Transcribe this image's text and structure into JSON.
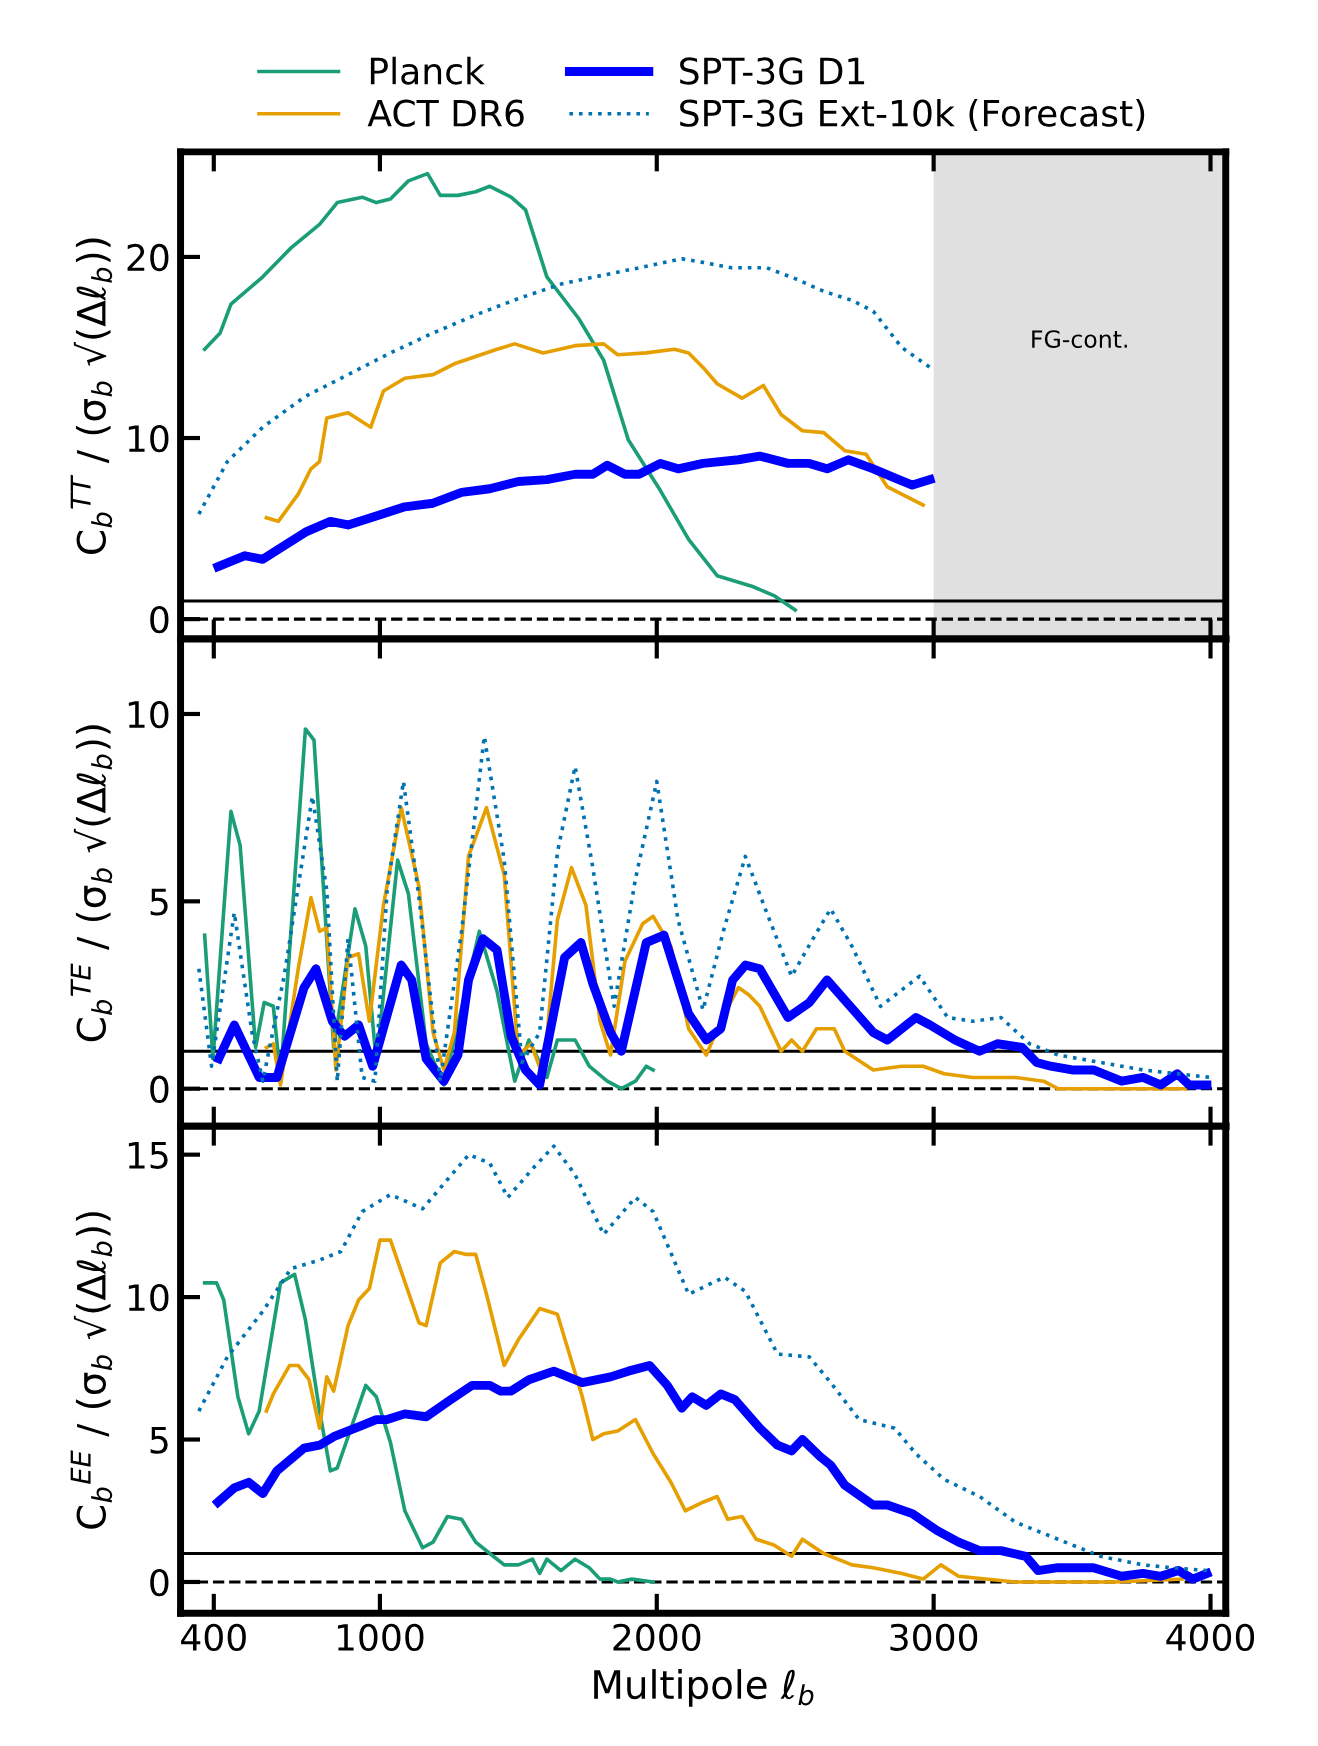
{
  "chart_data": [
    {
      "type": "line",
      "ylabel": "C$_{b}$$^{TT}$ / (σ$_{b}$ √(Δℓ$_{b}$))",
      "xlim": [
        280,
        4055
      ],
      "xticks": [
        400,
        1000,
        2000,
        3000,
        4000
      ],
      "ylim": [
        -1.1,
        25.8
      ],
      "yticks": [
        0,
        10,
        20
      ],
      "tick_labels": "y",
      "grid": false,
      "legend": "top",
      "ref_lines": [
        {
          "axis": "y",
          "value": 1,
          "color": "#000000",
          "line_style": "solid"
        },
        {
          "axis": "y",
          "value": 0,
          "color": "#000000",
          "line_style": "dashed"
        }
      ],
      "bands": [
        {
          "axis": "x",
          "from": 3000,
          "to": 4055,
          "label": "FG-cont.",
          "color": "#e0e0e0"
        }
      ],
      "series": [
        {
          "name": "Planck",
          "color": "#1b9e77",
          "line_style": "solid",
          "x": [
            367,
            423,
            462,
            577,
            679,
            782,
            846,
            936,
            987,
            1038,
            1103,
            1172,
            1218,
            1282,
            1346,
            1397,
            1474,
            1526,
            1603,
            1718,
            1808,
            1897,
            2013,
            2115,
            2218,
            2346,
            2423,
            2500
          ],
          "values": [
            14.9,
            15.8,
            17.4,
            18.9,
            20.5,
            21.8,
            23.0,
            23.3,
            23.0,
            23.2,
            24.2,
            24.6,
            23.4,
            23.4,
            23.6,
            23.9,
            23.3,
            22.6,
            18.9,
            16.6,
            14.3,
            9.9,
            7.1,
            4.4,
            2.4,
            1.8,
            1.3,
            0.5
          ]
        },
        {
          "name": "ACT DR6",
          "color": "#e69f00",
          "line_style": "solid",
          "x": [
            590,
            633,
            705,
            751,
            782,
            808,
            885,
            936,
            967,
            1013,
            1090,
            1192,
            1269,
            1346,
            1423,
            1487,
            1590,
            1705,
            1808,
            1859,
            1962,
            2064,
            2115,
            2167,
            2218,
            2308,
            2385,
            2449,
            2526,
            2603,
            2679,
            2756,
            2833,
            2962
          ],
          "values": [
            5.6,
            5.4,
            6.9,
            8.3,
            8.7,
            11.1,
            11.4,
            10.9,
            10.6,
            12.6,
            13.3,
            13.5,
            14.1,
            14.5,
            14.9,
            15.2,
            14.7,
            15.1,
            15.2,
            14.6,
            14.7,
            14.9,
            14.7,
            13.9,
            13.0,
            12.2,
            12.9,
            11.3,
            10.4,
            10.3,
            9.3,
            9.1,
            7.3,
            6.3
          ]
        },
        {
          "name": "SPT-3G D1",
          "color": "#0000ff",
          "line_style": "solid",
          "x": [
            415,
            513,
            577,
            628,
            731,
            821,
            885,
            987,
            1090,
            1192,
            1295,
            1397,
            1500,
            1603,
            1705,
            1769,
            1821,
            1885,
            1936,
            2013,
            2077,
            2167,
            2295,
            2372,
            2474,
            2551,
            2615,
            2692,
            2782,
            2859,
            2923,
            2987
          ],
          "values": [
            2.9,
            3.5,
            3.3,
            3.8,
            4.8,
            5.4,
            5.2,
            5.7,
            6.2,
            6.4,
            7.0,
            7.2,
            7.6,
            7.7,
            8.0,
            8.0,
            8.5,
            8.0,
            8.0,
            8.6,
            8.3,
            8.6,
            8.8,
            9.0,
            8.6,
            8.6,
            8.3,
            8.8,
            8.3,
            7.8,
            7.4,
            7.7
          ]
        },
        {
          "name": "SPT-3G Ext-10k (Forecast)",
          "color": "#0072b2",
          "line_style": "dotted",
          "x": [
            346,
            449,
            577,
            731,
            885,
            1038,
            1192,
            1346,
            1500,
            1654,
            1808,
            1936,
            2090,
            2167,
            2269,
            2397,
            2500,
            2603,
            2705,
            2782,
            2885,
            2987
          ],
          "values": [
            5.8,
            8.7,
            10.6,
            12.3,
            13.5,
            14.7,
            15.8,
            16.8,
            17.7,
            18.5,
            19.0,
            19.4,
            19.9,
            19.7,
            19.4,
            19.4,
            18.8,
            18.1,
            17.6,
            17.0,
            15.0,
            13.9
          ]
        }
      ]
    },
    {
      "type": "line",
      "ylabel": "C$_{b}$$^{TE}$ / (σ$_{b}$ √(Δℓ$_{b}$))",
      "xlim": [
        280,
        4055
      ],
      "xticks": [
        400,
        1000,
        2000,
        3000,
        4000
      ],
      "ylim": [
        -1,
        12
      ],
      "yticks": [
        0,
        5,
        10
      ],
      "tick_labels": "y",
      "grid": false,
      "ref_lines": [
        {
          "axis": "y",
          "value": 1,
          "color": "#000000",
          "line_style": "solid"
        },
        {
          "axis": "y",
          "value": 0,
          "color": "#000000",
          "line_style": "dashed"
        }
      ],
      "series": [
        {
          "color": "#1b9e77",
          "line_style": "solid",
          "x": [
            367,
            397,
            462,
            495,
            551,
            582,
            615,
            641,
            731,
            762,
            833,
            910,
            949,
            987,
            1064,
            1103,
            1167,
            1231,
            1359,
            1423,
            1487,
            1538,
            1603,
            1641,
            1705,
            1756,
            1821,
            1872,
            1923,
            1962,
            1987
          ],
          "values": [
            4.1,
            0.8,
            7.4,
            6.5,
            1.1,
            2.3,
            2.2,
            0.3,
            9.6,
            9.3,
            1.1,
            4.8,
            3.8,
            0.7,
            6.1,
            5.2,
            1.2,
            0.1,
            4.2,
            2.6,
            0.2,
            1.3,
            0.3,
            1.3,
            1.3,
            0.6,
            0.2,
            0.0,
            0.2,
            0.6,
            0.5
          ]
        },
        {
          "color": "#e69f00",
          "line_style": "solid",
          "x": [
            590,
            615,
            641,
            705,
            751,
            782,
            808,
            841,
            885,
            923,
            962,
            1013,
            1077,
            1141,
            1192,
            1231,
            1269,
            1320,
            1385,
            1449,
            1500,
            1546,
            1590,
            1641,
            1692,
            1744,
            1795,
            1833,
            1885,
            1949,
            1987,
            2051,
            2115,
            2179,
            2231,
            2295,
            2333,
            2372,
            2449,
            2487,
            2526,
            2577,
            2641,
            2679,
            2782,
            2885,
            2962,
            3038,
            3141,
            3295,
            3397,
            3449,
            3654,
            3910
          ],
          "values": [
            1.1,
            1.2,
            0.1,
            3.2,
            5.1,
            4.2,
            4.3,
            0.5,
            3.5,
            3.6,
            1.8,
            4.9,
            7.5,
            5.4,
            1.5,
            0.5,
            1.5,
            6.2,
            7.5,
            5.7,
            0.9,
            1.2,
            0.3,
            4.5,
            5.9,
            4.9,
            1.8,
            0.9,
            3.4,
            4.4,
            4.6,
            3.8,
            1.6,
            0.9,
            1.8,
            2.7,
            2.5,
            2.2,
            1.0,
            1.3,
            1.0,
            1.6,
            1.6,
            1.0,
            0.5,
            0.6,
            0.6,
            0.4,
            0.3,
            0.3,
            0.2,
            0.0,
            0.0,
            0.0
          ]
        },
        {
          "color": "#0000ff",
          "line_style": "solid",
          "x": [
            418,
            474,
            564,
            628,
            726,
            769,
            828,
            872,
            923,
            974,
            1077,
            1115,
            1167,
            1231,
            1282,
            1320,
            1372,
            1423,
            1474,
            1526,
            1577,
            1667,
            1726,
            1769,
            1833,
            1872,
            1962,
            2026,
            2115,
            2179,
            2231,
            2274,
            2320,
            2372,
            2474,
            2551,
            2615,
            2782,
            2833,
            2936,
            2987,
            3077,
            3166,
            3230,
            3320,
            3372,
            3423,
            3500,
            3577,
            3679,
            3756,
            3820,
            3880,
            3923,
            3987
          ],
          "values": [
            0.8,
            1.7,
            0.3,
            0.3,
            2.7,
            3.2,
            1.8,
            1.4,
            1.7,
            0.6,
            3.3,
            2.9,
            0.8,
            0.2,
            0.9,
            2.9,
            4.0,
            3.7,
            1.4,
            0.5,
            0.1,
            3.5,
            3.9,
            2.8,
            1.5,
            1.0,
            3.9,
            4.1,
            2.0,
            1.3,
            1.6,
            2.9,
            3.3,
            3.2,
            1.9,
            2.3,
            2.9,
            1.5,
            1.3,
            1.9,
            1.7,
            1.3,
            1.0,
            1.2,
            1.1,
            0.7,
            0.6,
            0.5,
            0.5,
            0.2,
            0.3,
            0.1,
            0.4,
            0.1,
            0.1
          ]
        },
        {
          "color": "#0072b2",
          "line_style": "dotted",
          "x": [
            346,
            392,
            474,
            538,
            577,
            654,
            756,
            808,
            846,
            885,
            936,
            982,
            1026,
            1085,
            1141,
            1218,
            1295,
            1377,
            1449,
            1513,
            1577,
            1641,
            1705,
            1769,
            1846,
            1923,
            2000,
            2077,
            2167,
            2244,
            2320,
            2397,
            2487,
            2564,
            2628,
            2705,
            2808,
            2949,
            3051,
            3141,
            3243,
            3346,
            3449,
            3603,
            3756,
            4000
          ],
          "values": [
            3.2,
            0.6,
            4.7,
            1.5,
            0.2,
            3.0,
            7.8,
            5.3,
            0.2,
            4.0,
            0.3,
            0.2,
            5.3,
            8.2,
            5.1,
            0.2,
            4.2,
            9.4,
            6.1,
            0.7,
            1.5,
            6.3,
            8.6,
            5.9,
            2.2,
            5.6,
            8.2,
            4.5,
            2.1,
            4.3,
            6.2,
            4.7,
            3.0,
            4.0,
            4.8,
            3.8,
            2.2,
            3.0,
            1.9,
            1.8,
            1.9,
            1.2,
            0.9,
            0.7,
            0.5,
            0.3
          ]
        }
      ]
    },
    {
      "type": "line",
      "ylabel": "C$_{b}$$^{EE}$ / (σ$_{b}$ √(Δℓ$_{b}$))",
      "xlabel": "Multipole ℓ$_{b}$",
      "xlim": [
        280,
        4055
      ],
      "xticks": [
        400,
        1000,
        2000,
        3000,
        4000
      ],
      "ylim": [
        -1.1,
        16
      ],
      "yticks": [
        0,
        5,
        10,
        15
      ],
      "grid": false,
      "ref_lines": [
        {
          "axis": "y",
          "value": 1,
          "color": "#000000",
          "line_style": "solid"
        },
        {
          "axis": "y",
          "value": 0,
          "color": "#000000",
          "line_style": "dashed"
        }
      ],
      "series": [
        {
          "color": "#1b9e77",
          "line_style": "solid",
          "x": [
            367,
            410,
            436,
            487,
            526,
            564,
            641,
            692,
            731,
            782,
            821,
            846,
            949,
            987,
            1038,
            1090,
            1154,
            1192,
            1244,
            1295,
            1346,
            1397,
            1449,
            1500,
            1551,
            1577,
            1603,
            1654,
            1705,
            1756,
            1795,
            1833,
            1859,
            1910,
            1987
          ],
          "values": [
            10.5,
            10.5,
            9.9,
            6.5,
            5.2,
            6.0,
            10.5,
            10.8,
            9.2,
            6.0,
            3.9,
            4.0,
            6.9,
            6.5,
            4.9,
            2.5,
            1.2,
            1.4,
            2.3,
            2.2,
            1.4,
            1.0,
            0.6,
            0.6,
            0.8,
            0.3,
            0.8,
            0.4,
            0.8,
            0.5,
            0.1,
            0.1,
            0.0,
            0.1,
            0.0
          ]
        },
        {
          "color": "#e69f00",
          "line_style": "solid",
          "x": [
            590,
            615,
            674,
            705,
            744,
            782,
            808,
            833,
            885,
            923,
            962,
            1000,
            1038,
            1141,
            1167,
            1218,
            1269,
            1308,
            1346,
            1385,
            1449,
            1500,
            1577,
            1641,
            1731,
            1769,
            1808,
            1859,
            1923,
            1987,
            2051,
            2103,
            2167,
            2218,
            2256,
            2308,
            2359,
            2423,
            2487,
            2526,
            2603,
            2705,
            2782,
            2885,
            2962,
            3026,
            3090,
            3295,
            3654,
            3897
          ],
          "values": [
            6.0,
            6.6,
            7.6,
            7.6,
            7.1,
            5.4,
            7.2,
            6.7,
            9.0,
            9.9,
            10.3,
            12.0,
            12.0,
            9.1,
            9.0,
            11.2,
            11.6,
            11.5,
            11.5,
            10.1,
            7.6,
            8.5,
            9.6,
            9.4,
            6.5,
            5.0,
            5.2,
            5.3,
            5.7,
            4.5,
            3.5,
            2.5,
            2.8,
            3.0,
            2.2,
            2.3,
            1.5,
            1.3,
            0.9,
            1.5,
            1.0,
            0.6,
            0.5,
            0.3,
            0.1,
            0.6,
            0.2,
            0.0,
            0.0,
            0.1
          ]
        },
        {
          "color": "#0000ff",
          "line_style": "solid",
          "x": [
            415,
            474,
            526,
            577,
            628,
            726,
            782,
            833,
            936,
            987,
            1026,
            1090,
            1167,
            1256,
            1333,
            1397,
            1436,
            1474,
            1538,
            1628,
            1731,
            1833,
            1897,
            1974,
            2038,
            2090,
            2128,
            2179,
            2231,
            2282,
            2372,
            2436,
            2487,
            2526,
            2590,
            2628,
            2679,
            2782,
            2833,
            2923,
            3013,
            3090,
            3166,
            3243,
            3333,
            3377,
            3449,
            3513,
            3577,
            3679,
            3756,
            3820,
            3885,
            3936,
            3987
          ],
          "values": [
            2.8,
            3.3,
            3.5,
            3.1,
            3.9,
            4.7,
            4.8,
            5.1,
            5.5,
            5.7,
            5.7,
            5.9,
            5.8,
            6.4,
            6.9,
            6.9,
            6.7,
            6.7,
            7.1,
            7.4,
            7.0,
            7.2,
            7.4,
            7.6,
            6.9,
            6.1,
            6.5,
            6.2,
            6.6,
            6.4,
            5.4,
            4.8,
            4.6,
            5.0,
            4.4,
            4.1,
            3.4,
            2.7,
            2.7,
            2.4,
            1.8,
            1.4,
            1.1,
            1.1,
            0.9,
            0.4,
            0.5,
            0.5,
            0.5,
            0.2,
            0.3,
            0.2,
            0.4,
            0.1,
            0.3
          ]
        },
        {
          "color": "#0072b2",
          "line_style": "dotted",
          "x": [
            346,
            449,
            577,
            679,
            782,
            859,
            936,
            1038,
            1154,
            1321,
            1397,
            1462,
            1551,
            1628,
            1705,
            1808,
            1923,
            1987,
            2115,
            2244,
            2320,
            2436,
            2551,
            2628,
            2731,
            2859,
            2936,
            3038,
            3166,
            3295,
            3449,
            3603,
            3756,
            3859,
            3987
          ],
          "values": [
            6.0,
            7.9,
            9.5,
            11.0,
            11.3,
            11.6,
            13.0,
            13.6,
            13.1,
            15.0,
            14.7,
            13.5,
            14.5,
            15.3,
            14.3,
            12.2,
            13.5,
            13.0,
            10.1,
            10.7,
            10.2,
            8.0,
            7.9,
            7.0,
            5.7,
            5.4,
            4.5,
            3.6,
            3.0,
            2.1,
            1.5,
            0.9,
            0.6,
            0.5,
            0.4
          ]
        }
      ]
    }
  ]
}
